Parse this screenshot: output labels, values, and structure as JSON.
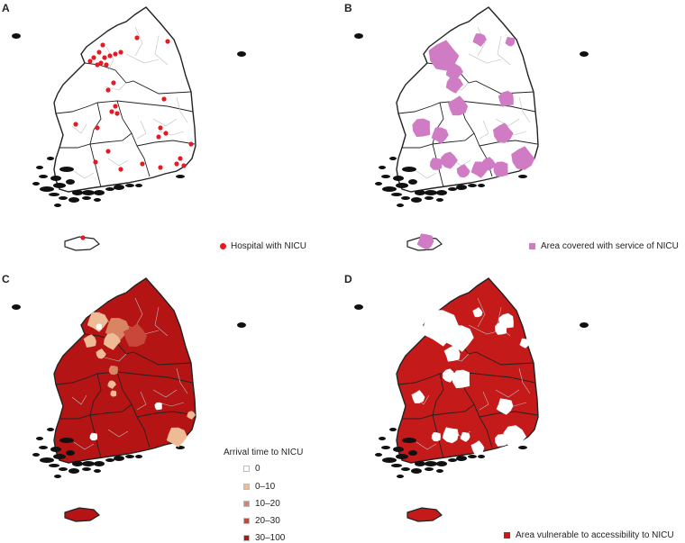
{
  "panels": [
    {
      "label": "A",
      "legend": "Hospital with NICU"
    },
    {
      "label": "B",
      "legend": "Area covered with service of NICU"
    },
    {
      "label": "C",
      "legend_title": "Arrival time to NICU"
    },
    {
      "label": "D",
      "legend": "Area vulnerable to accessibility to NICU"
    }
  ],
  "colors": {
    "hospital": "#e31b23",
    "coverage": "#cf7cc4",
    "vulnerable": "#c41a1a",
    "outline": "#222222",
    "inner": "#bdbdbd"
  },
  "arrival_classes": [
    {
      "label": "0",
      "color": "#ffffff"
    },
    {
      "label": "0–10",
      "color": "#efbb95"
    },
    {
      "label": "10–20",
      "color": "#d98462"
    },
    {
      "label": "20–30",
      "color": "#c9473a"
    },
    {
      "label": "30–100",
      "color": "#b41414"
    }
  ]
}
